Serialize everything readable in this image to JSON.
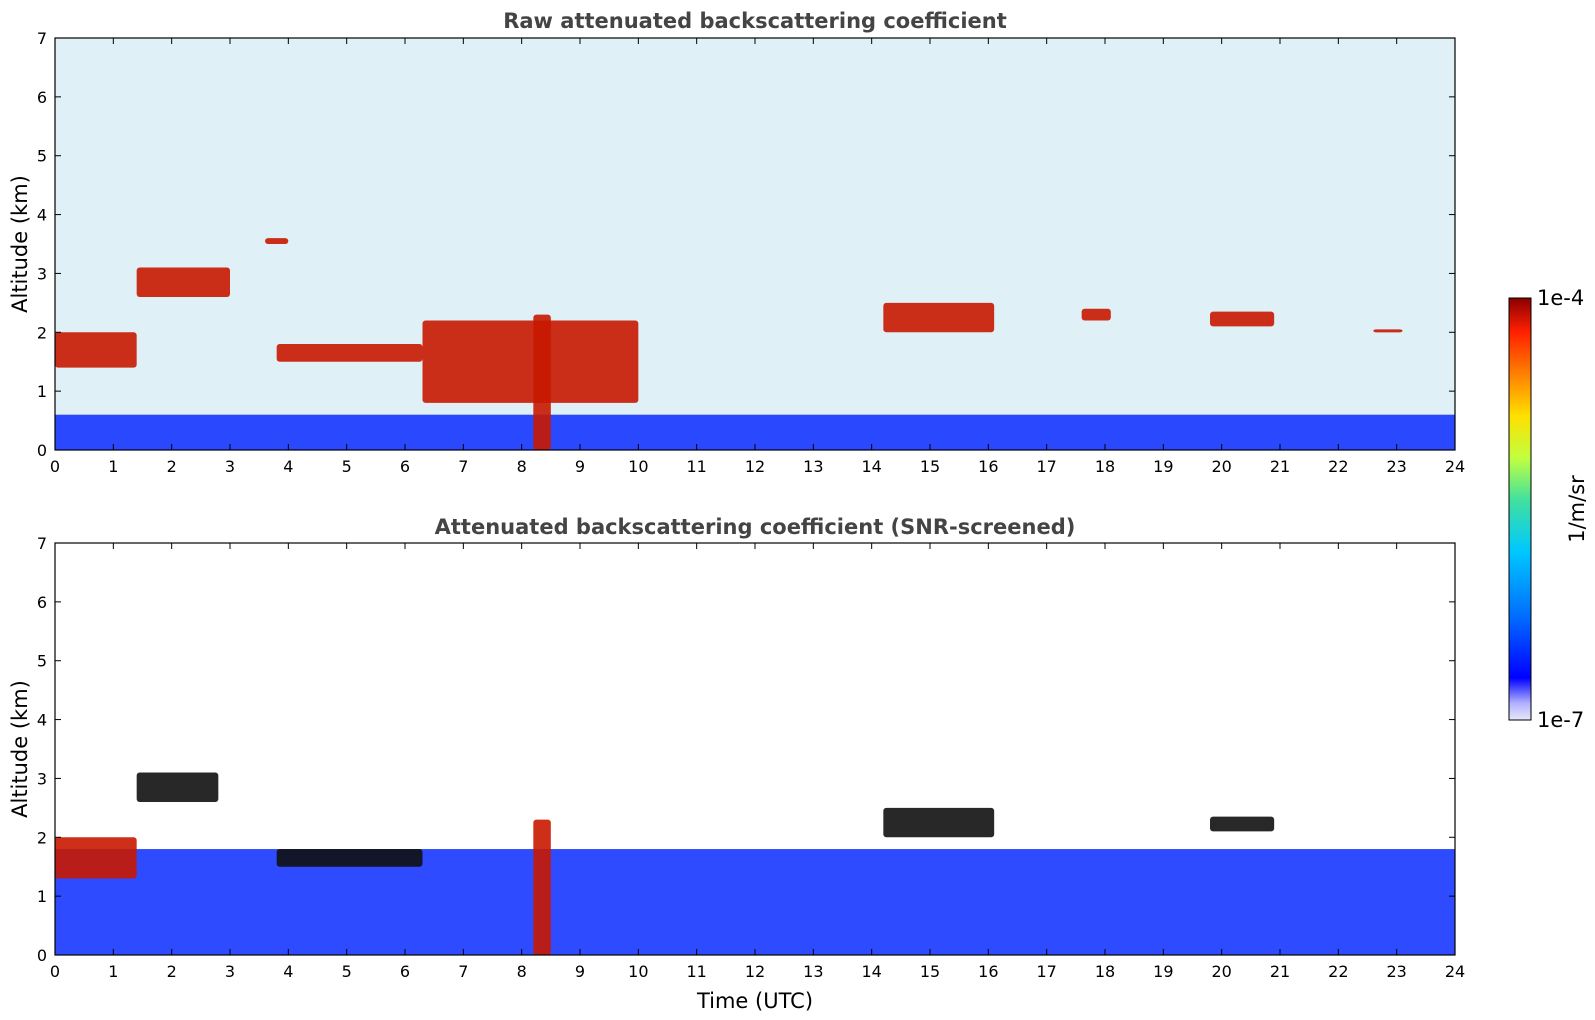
{
  "chart_data": [
    {
      "type": "heatmap",
      "title": "Raw attenuated backscattering coefficient",
      "xlabel": "",
      "ylabel": "Altitude (km)",
      "xlim": [
        0,
        24
      ],
      "ylim": [
        0,
        7
      ],
      "xticks": [
        "0",
        "1",
        "2",
        "3",
        "4",
        "5",
        "6",
        "7",
        "8",
        "9",
        "10",
        "11",
        "12",
        "13",
        "14",
        "15",
        "16",
        "17",
        "18",
        "19",
        "20",
        "21",
        "22",
        "23",
        "24"
      ],
      "yticks": [
        "0",
        "1",
        "2",
        "3",
        "4",
        "5",
        "6",
        "7"
      ],
      "layers": [
        {
          "feature": "boundary layer",
          "x": [
            0,
            24
          ],
          "y_top": 0.6,
          "level": "low"
        },
        {
          "feature": "aerosol layer",
          "x": [
            0,
            1.4
          ],
          "y": [
            1.4,
            2.0
          ],
          "level": "high"
        },
        {
          "feature": "cloud",
          "x": [
            1.4,
            3.0
          ],
          "y": [
            2.6,
            3.1
          ],
          "level": "high"
        },
        {
          "feature": "cloud",
          "x": [
            3.6,
            4.0
          ],
          "y": [
            3.5,
            3.6
          ],
          "level": "high"
        },
        {
          "feature": "aerosol layer",
          "x": [
            3.8,
            6.3
          ],
          "y": [
            1.5,
            1.8
          ],
          "level": "high"
        },
        {
          "feature": "aerosol layer",
          "x": [
            6.3,
            10.0
          ],
          "y": [
            0.8,
            2.2
          ],
          "level": "high"
        },
        {
          "feature": "precipitation",
          "x": [
            8.2,
            8.5
          ],
          "y": [
            0,
            2.3
          ],
          "level": "high"
        },
        {
          "feature": "cloud",
          "x": [
            14.2,
            16.1
          ],
          "y": [
            2.0,
            2.5
          ],
          "level": "high"
        },
        {
          "feature": "cloud",
          "x": [
            17.6,
            18.1
          ],
          "y": [
            2.2,
            2.4
          ],
          "level": "high"
        },
        {
          "feature": "cloud",
          "x": [
            19.8,
            20.9
          ],
          "y": [
            2.1,
            2.35
          ],
          "level": "high"
        },
        {
          "feature": "cloud",
          "x": [
            22.6,
            23.1
          ],
          "y": [
            2.0,
            2.05
          ],
          "level": "high"
        }
      ]
    },
    {
      "type": "heatmap",
      "title": "Attenuated backscattering coefficient (SNR-screened)",
      "xlabel": "Time (UTC)",
      "ylabel": "Altitude (km)",
      "xlim": [
        0,
        24
      ],
      "ylim": [
        0,
        7
      ],
      "xticks": [
        "0",
        "1",
        "2",
        "3",
        "4",
        "5",
        "6",
        "7",
        "8",
        "9",
        "10",
        "11",
        "12",
        "13",
        "14",
        "15",
        "16",
        "17",
        "18",
        "19",
        "20",
        "21",
        "22",
        "23",
        "24"
      ],
      "yticks": [
        "0",
        "1",
        "2",
        "3",
        "4",
        "5",
        "6",
        "7"
      ],
      "layers": [
        {
          "feature": "boundary layer",
          "x": [
            0,
            24
          ],
          "y_top": 1.8,
          "level": "low"
        },
        {
          "feature": "aerosol layer",
          "x": [
            0,
            1.4
          ],
          "y": [
            1.3,
            2.0
          ],
          "level": "high"
        },
        {
          "feature": "cloud",
          "x": [
            1.4,
            2.8
          ],
          "y": [
            2.6,
            3.1
          ],
          "level": "saturated"
        },
        {
          "feature": "aerosol layer",
          "x": [
            3.8,
            6.3
          ],
          "y": [
            1.5,
            1.8
          ],
          "level": "saturated"
        },
        {
          "feature": "precipitation",
          "x": [
            8.2,
            8.5
          ],
          "y": [
            0,
            2.3
          ],
          "level": "high"
        },
        {
          "feature": "cloud",
          "x": [
            14.2,
            16.1
          ],
          "y": [
            2.0,
            2.5
          ],
          "level": "saturated"
        },
        {
          "feature": "cloud",
          "x": [
            19.8,
            20.9
          ],
          "y": [
            2.1,
            2.35
          ],
          "level": "saturated"
        }
      ]
    }
  ],
  "colorbar": {
    "label": "1/m/sr",
    "max_label": "1e-4",
    "min_label": "1e-7",
    "scale": "log",
    "colors": [
      "#e8e8f8",
      "#b0b0ff",
      "#0000ff",
      "#0070ff",
      "#00c8ff",
      "#40e0a0",
      "#c0ff40",
      "#ffe000",
      "#ff8000",
      "#ff2000",
      "#8b0000"
    ]
  }
}
